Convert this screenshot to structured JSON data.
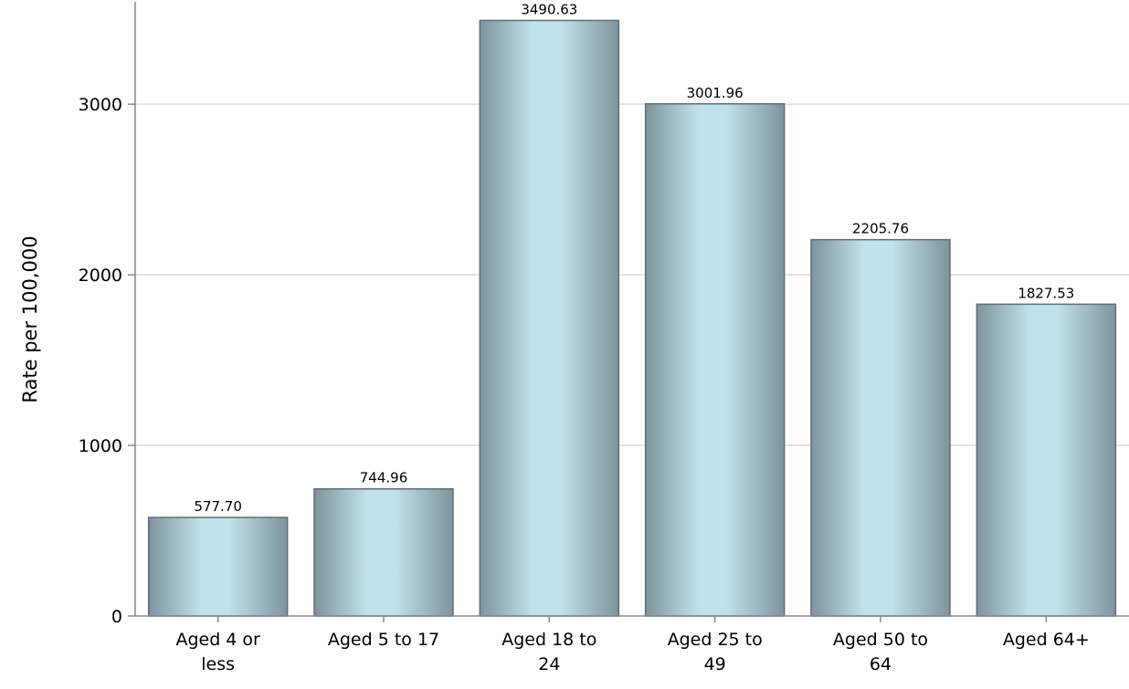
{
  "chart_data": {
    "type": "bar",
    "title": "",
    "xlabel": "",
    "ylabel": "Rate per 100,000",
    "categories": [
      [
        "Aged 4 or",
        "less"
      ],
      [
        "Aged 5 to 17"
      ],
      [
        "Aged 18 to",
        "24"
      ],
      [
        "Aged 25 to",
        "49"
      ],
      [
        "Aged 50 to",
        "64"
      ],
      [
        "Aged 64+"
      ]
    ],
    "values": [
      577.7,
      744.96,
      3490.63,
      3001.96,
      2205.76,
      1827.53
    ],
    "value_labels": [
      "577.70",
      "744.96",
      "3490.63",
      "3001.96",
      "2205.76",
      "1827.53"
    ],
    "ylim": [
      0,
      3600
    ],
    "yticks": [
      0,
      1000,
      2000,
      3000
    ],
    "ytick_labels": [
      "0",
      "1000",
      "2000",
      "3000"
    ],
    "grid": true,
    "legend": "none",
    "colors": {
      "bar_edge": "#5e6e76",
      "bar_mid": "#c0e2ec",
      "bar_dark": "#7e949c",
      "grid": "#dcdcdc",
      "axis": "#8a8a8a"
    }
  }
}
